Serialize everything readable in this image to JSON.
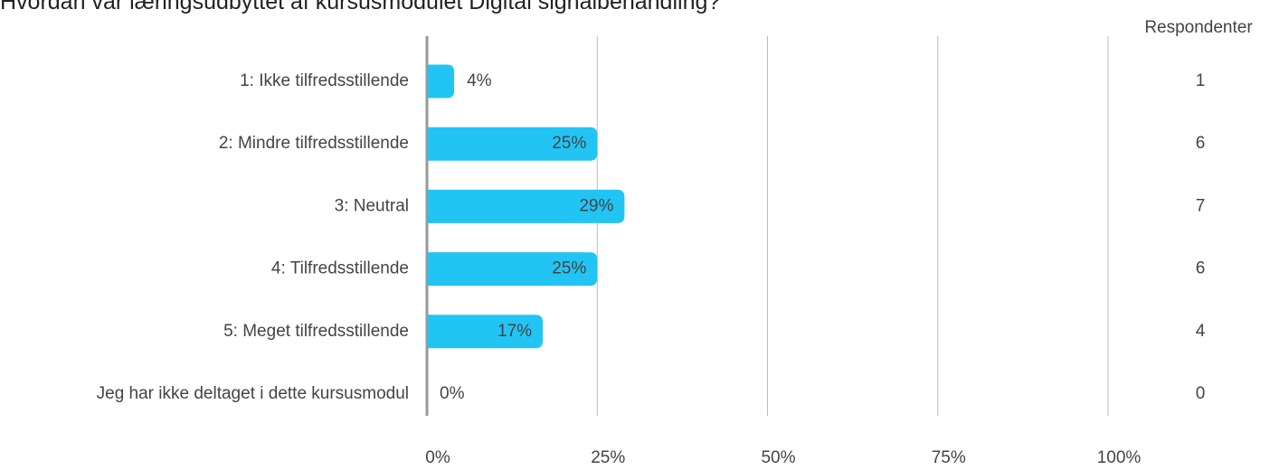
{
  "chart_data": {
    "type": "bar",
    "orientation": "horizontal",
    "title": "Hvordan var læringsudbyttet af kursusmodulet Digital signalbehandling?",
    "categories": [
      "1: Ikke tilfredsstillende",
      "2: Mindre tilfredsstillende",
      "3: Neutral",
      "4: Tilfredsstillende",
      "5: Meget tilfredsstillende",
      "Jeg har ikke deltaget i dette kursusmodul"
    ],
    "values": [
      4,
      25,
      29,
      25,
      17,
      0
    ],
    "value_labels": [
      "4%",
      "25%",
      "29%",
      "25%",
      "17%",
      "0%"
    ],
    "color": "#22c4f4",
    "respondents_label": "Respondenter",
    "respondents": [
      1,
      6,
      7,
      6,
      4,
      0
    ],
    "xlim": [
      0,
      100
    ],
    "xticks": [
      {
        "value": 0,
        "label": "0%"
      },
      {
        "value": 25,
        "label": "25%"
      },
      {
        "value": 50,
        "label": "50%"
      },
      {
        "value": 75,
        "label": "75%"
      },
      {
        "value": 100,
        "label": "100%"
      }
    ],
    "grid": true
  }
}
